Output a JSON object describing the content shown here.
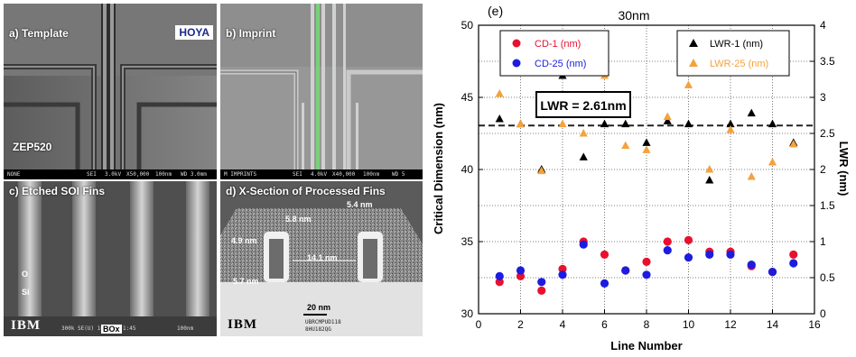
{
  "panels": {
    "a": {
      "title": "a) Template",
      "logo": "HOYA",
      "material": "ZEP520",
      "footer": [
        "NONE",
        "SEI",
        "3.0kV",
        "X50,000",
        "100nm",
        "WD 3.0mm"
      ]
    },
    "b": {
      "title": "b) Imprint",
      "footer": [
        "M IMPRINTS",
        "SEI",
        "4.0kV",
        "X40,000",
        "100nm",
        "WD 5"
      ]
    },
    "c": {
      "title": "c) Etched SOI Fins",
      "layer_o": "O",
      "layer_si": "Si",
      "logo": "IBM",
      "footer_left": "300k SE(U) 10",
      "box_label": "BOx",
      "footer_mid": "1:45",
      "scale": "100nm"
    },
    "d": {
      "title": "d) X-Section of Processed Fins",
      "dims": [
        "5.8 nm",
        "5.4 nm",
        "4.9 nm",
        "14.1 nm",
        "5.7 nm",
        "20 nm"
      ],
      "logo": "IBM",
      "caption_line1": "UBRCMPUD118",
      "caption_line2": "8HU182QG"
    }
  },
  "chart_data": {
    "type": "scatter",
    "panel_label": "(e)",
    "title": "30nm",
    "xlabel": "Line Number",
    "ylabel": "Critical Dimension (nm)",
    "y2label": "LWR (nm)",
    "xlim": [
      0,
      16
    ],
    "ylim": [
      30,
      50
    ],
    "y2lim": [
      0,
      4
    ],
    "xticks": [
      "0",
      "2",
      "4",
      "6",
      "8",
      "10",
      "12",
      "14",
      "16"
    ],
    "yticks": [
      "30",
      "35",
      "40",
      "45",
      "50"
    ],
    "y2ticks": [
      "0",
      "0.5",
      "1",
      "1.5",
      "2",
      "2.5",
      "3",
      "3.5",
      "4"
    ],
    "grid": "dotted",
    "legend_left": [
      "CD-1 (nm)",
      "CD-25 (nm)"
    ],
    "legend_right": [
      "LWR-1 (nm)",
      "LWR-25 (nm)"
    ],
    "annotation": "LWR = 2.61nm",
    "reference_lwr": 2.61,
    "colors": {
      "cd1": "#e8112d",
      "cd25": "#1c1ce0",
      "lwr1": "#000000",
      "lwr25": "#f4a23c"
    },
    "series": [
      {
        "name": "CD-1 (nm)",
        "axis": "left",
        "marker": "circle",
        "x": [
          1,
          2,
          3,
          4,
          5,
          6,
          7,
          8,
          9,
          10,
          11,
          12,
          13,
          14,
          15
        ],
        "y": [
          32.2,
          32.6,
          31.6,
          33.1,
          35.0,
          34.1,
          33.0,
          33.6,
          35.0,
          35.1,
          34.3,
          34.3,
          33.3,
          32.9,
          34.1
        ]
      },
      {
        "name": "CD-25 (nm)",
        "axis": "left",
        "marker": "circle",
        "x": [
          1,
          2,
          3,
          4,
          5,
          6,
          7,
          8,
          9,
          10,
          11,
          12,
          13,
          14,
          15
        ],
        "y": [
          32.6,
          33.0,
          32.2,
          32.7,
          34.8,
          32.1,
          33.0,
          32.7,
          34.4,
          33.9,
          34.1,
          34.1,
          33.4,
          32.9,
          33.5
        ]
      },
      {
        "name": "LWR-1 (nm)",
        "axis": "right",
        "marker": "triangle",
        "x": [
          1,
          2,
          3,
          4,
          5,
          6,
          7,
          8,
          9,
          10,
          11,
          12,
          13,
          14,
          15
        ],
        "y": [
          2.7,
          2.63,
          2.0,
          3.3,
          2.17,
          2.63,
          2.63,
          2.37,
          2.67,
          2.63,
          1.85,
          2.63,
          2.78,
          2.63,
          2.37
        ]
      },
      {
        "name": "LWR-25 (nm)",
        "axis": "right",
        "marker": "triangle",
        "x": [
          1,
          2,
          3,
          4,
          5,
          6,
          7,
          8,
          9,
          10,
          11,
          12,
          13,
          14,
          15
        ],
        "y": [
          3.05,
          2.63,
          1.98,
          2.63,
          2.5,
          3.3,
          2.33,
          2.27,
          2.73,
          3.17,
          2.0,
          2.55,
          1.9,
          2.1,
          2.35
        ]
      }
    ]
  }
}
